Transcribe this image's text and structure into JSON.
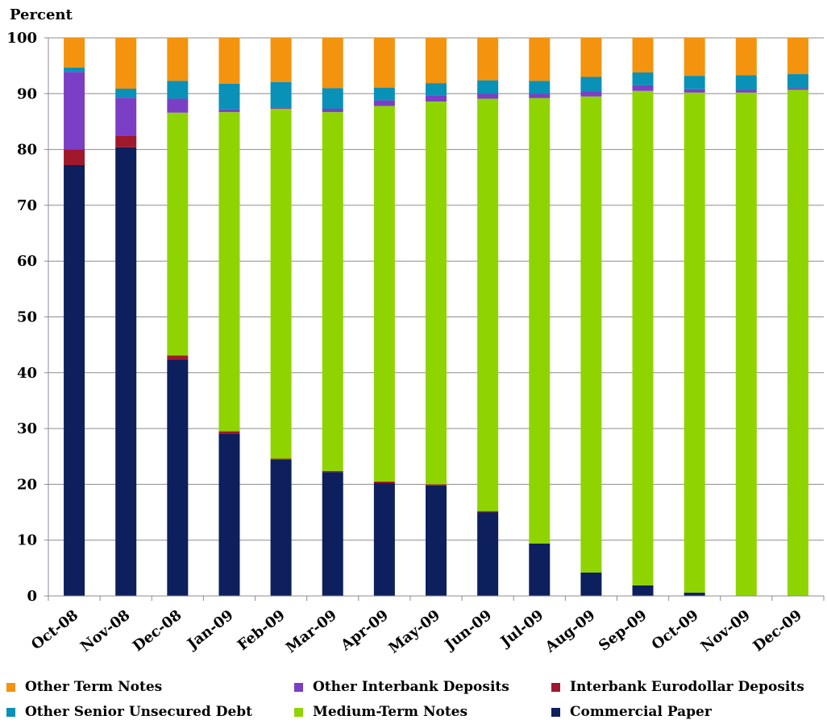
{
  "chart_data": {
    "type": "bar",
    "stacked": true,
    "ylabel": "Percent",
    "ylim": [
      0,
      100
    ],
    "yticks": [
      0,
      10,
      20,
      30,
      40,
      50,
      60,
      70,
      80,
      90,
      100
    ],
    "categories": [
      "Oct-08",
      "Nov-08",
      "Dec-08",
      "Jan-09",
      "Feb-09",
      "Mar-09",
      "Apr-09",
      "May-09",
      "Jun-09",
      "Jul-09",
      "Aug-09",
      "Sep-09",
      "Oct-09",
      "Nov-09",
      "Dec-09"
    ],
    "series": [
      {
        "name": "Commercial Paper",
        "color": "#0d1f5c",
        "values": [
          77.2,
          80.4,
          42.4,
          29.1,
          24.4,
          22.2,
          20.2,
          19.8,
          15.0,
          9.4,
          4.2,
          1.9,
          0.6,
          0.0,
          0.0
        ]
      },
      {
        "name": "Interbank Eurodollar Deposits",
        "color": "#a0182c",
        "values": [
          2.8,
          2.1,
          0.7,
          0.4,
          0.2,
          0.2,
          0.3,
          0.2,
          0.2,
          0.0,
          0.0,
          0.0,
          0.0,
          0.0,
          0.0
        ]
      },
      {
        "name": "Medium-Term Notes",
        "color": "#8fd400",
        "values": [
          0.0,
          0.0,
          43.5,
          57.2,
          62.7,
          64.3,
          67.3,
          68.6,
          73.9,
          79.8,
          85.3,
          88.6,
          89.6,
          90.2,
          90.7
        ]
      },
      {
        "name": "Other Interbank Deposits",
        "color": "#7b3fc6",
        "values": [
          13.9,
          6.8,
          2.5,
          0.5,
          0.2,
          0.6,
          1.0,
          1.1,
          0.9,
          0.8,
          0.9,
          1.0,
          0.6,
          0.5,
          0.3
        ]
      },
      {
        "name": "Other Senior Unsecured Debt",
        "color": "#0a91b8",
        "values": [
          0.8,
          1.6,
          3.2,
          4.6,
          4.6,
          3.7,
          2.3,
          2.2,
          2.4,
          2.3,
          2.6,
          2.3,
          2.4,
          2.6,
          2.5
        ]
      },
      {
        "name": "Other Term Notes",
        "color": "#f4930e",
        "values": [
          5.3,
          9.1,
          7.7,
          8.2,
          7.9,
          9.0,
          8.9,
          8.1,
          7.6,
          7.7,
          7.0,
          6.2,
          6.8,
          6.7,
          6.5
        ]
      }
    ]
  },
  "legend": [
    {
      "name": "Other Term Notes",
      "color": "#f4930e"
    },
    {
      "name": "Other Interbank Deposits",
      "color": "#7b3fc6"
    },
    {
      "name": "Interbank Eurodollar Deposits",
      "color": "#a0182c"
    },
    {
      "name": "Other Senior Unsecured Debt",
      "color": "#0a91b8"
    },
    {
      "name": "Medium-Term Notes",
      "color": "#8fd400"
    },
    {
      "name": "Commercial Paper",
      "color": "#0d1f5c"
    }
  ]
}
